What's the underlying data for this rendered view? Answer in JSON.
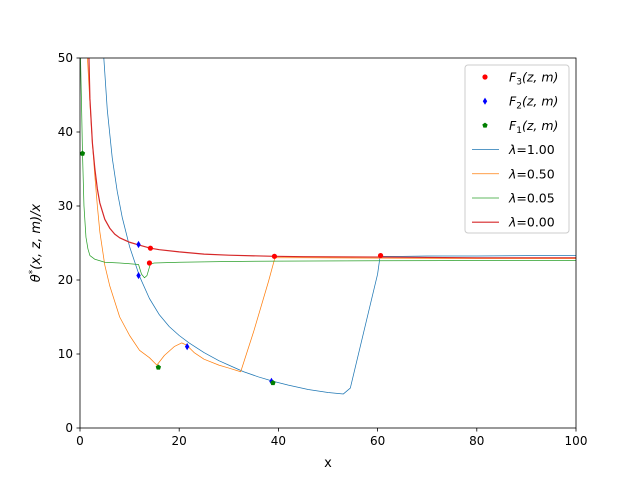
{
  "chart_data": {
    "type": "line",
    "title": "",
    "xlabel": "x",
    "ylabel_parts": {
      "theta": "θ",
      "star": "*",
      "args": "(x, z, m)/x"
    },
    "xlim": [
      0,
      100
    ],
    "ylim": [
      0,
      50
    ],
    "xticks": [
      0,
      20,
      40,
      60,
      80,
      100
    ],
    "yticks": [
      0,
      10,
      20,
      30,
      40,
      50
    ],
    "grid": false,
    "legend_placement": "top-right",
    "series": [
      {
        "name": "λ=1.00",
        "label_math": "λ",
        "label_value": "=1.00",
        "color": "#1f77b4",
        "x": [
          4.8,
          5.5,
          6.5,
          7.5,
          8.5,
          10,
          12,
          14,
          16,
          18,
          20,
          22,
          25,
          28,
          30,
          33,
          36,
          39,
          42,
          46,
          50,
          53.1,
          54.5,
          60,
          60.5,
          65,
          70,
          80,
          90,
          100
        ],
        "y": [
          50,
          43,
          36.5,
          32,
          28.5,
          24.5,
          20.5,
          17.5,
          15.3,
          13.7,
          12.5,
          11.5,
          10.2,
          9.1,
          8.5,
          7.6,
          6.9,
          6.3,
          5.8,
          5.2,
          4.8,
          4.6,
          5.4,
          20.8,
          23.2,
          23.2,
          23.25,
          23.25,
          23.3,
          23.3
        ]
      },
      {
        "name": "λ=0.50",
        "label_math": "λ",
        "label_value": "=0.50",
        "color": "#ff7f0e",
        "x": [
          1.5,
          2,
          2.5,
          3,
          3.5,
          4,
          5,
          6,
          8,
          10,
          12,
          14,
          15.5,
          17,
          19,
          20.5,
          21.5,
          23,
          25,
          28,
          30,
          32.4,
          35,
          38,
          39.3,
          45,
          60,
          80,
          100
        ],
        "y": [
          50,
          44,
          38.5,
          34,
          30,
          26.5,
          22,
          19.2,
          15,
          12.5,
          10.5,
          9.5,
          8.5,
          9.8,
          11,
          11.5,
          11.2,
          10.2,
          9.3,
          8.5,
          8.1,
          7.6,
          13,
          19.8,
          23.0,
          23.0,
          22.95,
          22.9,
          22.9
        ]
      },
      {
        "name": "λ=0.05",
        "label_math": "λ",
        "label_value": "=0.05",
        "color": "#2ca02c",
        "x": [
          0.1,
          0.3,
          0.5,
          0.8,
          1.2,
          1.6,
          2,
          3,
          5,
          8,
          10,
          11.8,
          12.4,
          13,
          13.5,
          14.2,
          15,
          20,
          30,
          40,
          60,
          100
        ],
        "y": [
          50,
          44,
          37.2,
          30,
          25.8,
          24.2,
          23.3,
          22.8,
          22.4,
          22.3,
          22.2,
          22.1,
          20.8,
          20.3,
          20.6,
          22.2,
          22.3,
          22.4,
          22.5,
          22.55,
          22.6,
          22.65
        ]
      },
      {
        "name": "λ=0.00",
        "label_math": "λ",
        "label_value": "=0.00",
        "color": "#d62728",
        "x": [
          1.8,
          2,
          2.5,
          3,
          3.5,
          4,
          5,
          6,
          7,
          8,
          10,
          12,
          14.2,
          16,
          20,
          25,
          30,
          39.2,
          45,
          60.6,
          70,
          80,
          100
        ],
        "y": [
          50,
          44.5,
          38.5,
          35,
          32.3,
          30.4,
          28.2,
          27,
          26.2,
          25.7,
          25.1,
          24.7,
          24.3,
          24.1,
          23.8,
          23.5,
          23.35,
          23.2,
          23.15,
          23.1,
          23.05,
          23.0,
          23.0
        ]
      }
    ],
    "markers": [
      {
        "name": "F₃(z, m)",
        "label_func": "F",
        "label_sub": "3",
        "label_args": "(z, m)",
        "color": "#ff0000",
        "shape": "circle",
        "points": [
          {
            "x": 14.2,
            "y": 24.3
          },
          {
            "x": 14.0,
            "y": 22.3
          },
          {
            "x": 39.2,
            "y": 23.2
          },
          {
            "x": 60.6,
            "y": 23.3
          }
        ]
      },
      {
        "name": "F₂(z, m)",
        "label_func": "F",
        "label_sub": "2",
        "label_args": "(z, m)",
        "color": "#0000ff",
        "shape": "diamond",
        "points": [
          {
            "x": 11.8,
            "y": 24.8
          },
          {
            "x": 11.8,
            "y": 20.6
          },
          {
            "x": 21.6,
            "y": 11.0
          },
          {
            "x": 38.6,
            "y": 6.3
          }
        ]
      },
      {
        "name": "F₁(z, m)",
        "label_func": "F",
        "label_sub": "1",
        "label_args": "(z, m)",
        "color": "#007f00",
        "shape": "pentagon",
        "points": [
          {
            "x": 0.5,
            "y": 37.1
          },
          {
            "x": 15.8,
            "y": 8.2
          },
          {
            "x": 38.9,
            "y": 6.1
          }
        ]
      }
    ]
  }
}
